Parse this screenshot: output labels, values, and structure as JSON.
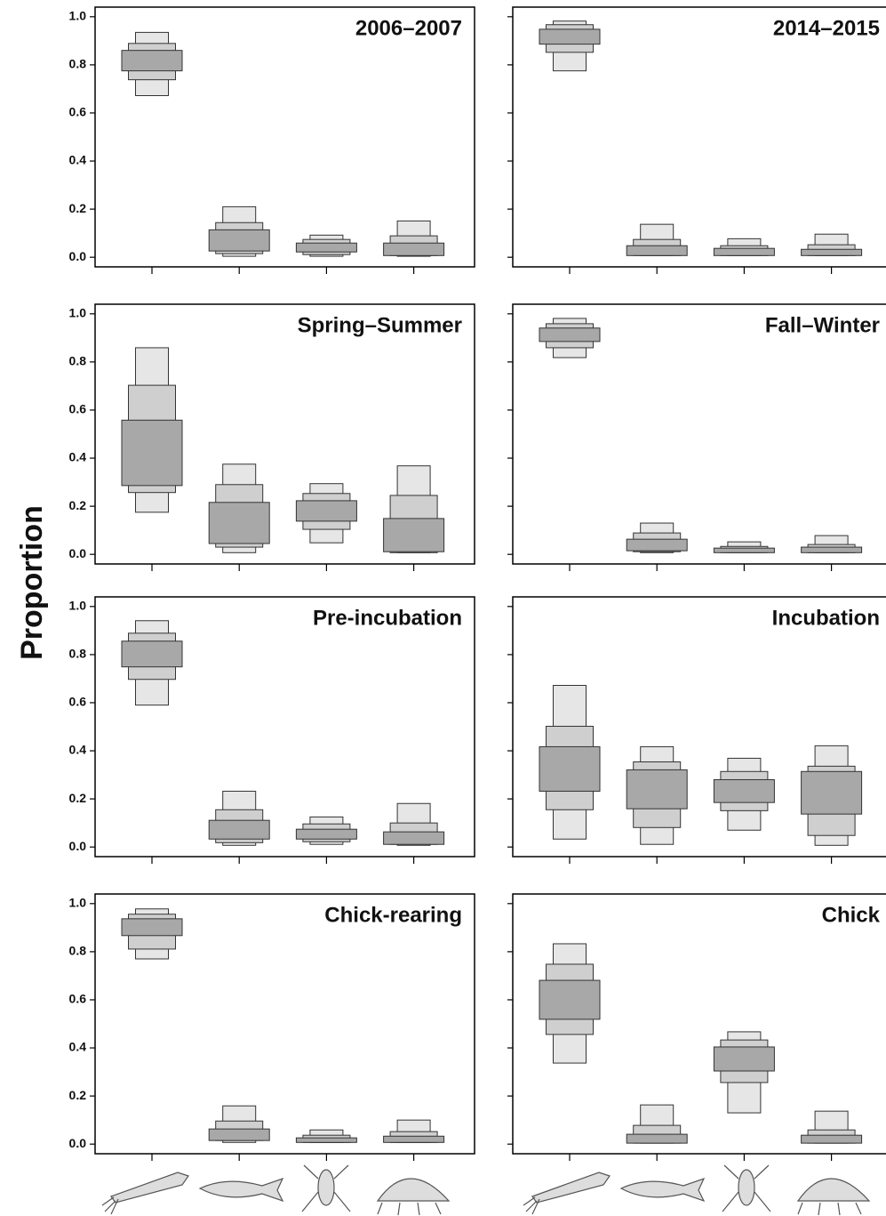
{
  "ylabel": "Proportion",
  "chart_data": [
    {
      "type": "interval",
      "title": "2006–2007",
      "categories": [
        null,
        null,
        null,
        null
      ],
      "ylim": [
        -0.04,
        1.04
      ],
      "yticks": [
        {
          "value": 0,
          "label": "0.0"
        },
        0.2,
        0.4,
        0.6,
        0.8,
        {
          "value": 1,
          "label": "1.0"
        }
      ],
      "ytick_labels": true,
      "colors": {
        "outer": "#e6e6e6",
        "middle": "#cfcfcf",
        "inner": "#a8a8a8"
      },
      "outer": [
        [
          0.672,
          0.935
        ],
        [
          0.004,
          0.21
        ],
        [
          0.004,
          0.092
        ],
        [
          0.004,
          0.151
        ]
      ],
      "middle": [
        [
          0.738,
          0.889
        ],
        [
          0.015,
          0.144
        ],
        [
          0.011,
          0.074
        ],
        [
          0.007,
          0.089
        ]
      ],
      "inner": [
        [
          0.775,
          0.86
        ],
        [
          0.026,
          0.114
        ],
        [
          0.022,
          0.059
        ],
        [
          0.007,
          0.059
        ]
      ]
    },
    {
      "type": "interval",
      "title": "2014–2015",
      "categories": [
        null,
        null,
        null,
        null
      ],
      "ylim": [
        -0.04,
        1.04
      ],
      "yticks": [
        0,
        0.2,
        0.4,
        0.6,
        0.8,
        1
      ],
      "ytick_labels": false,
      "colors": {
        "outer": "#e6e6e6",
        "middle": "#cfcfcf",
        "inner": "#a8a8a8"
      },
      "outer": [
        [
          0.775,
          0.982
        ],
        [
          0.007,
          0.137
        ],
        [
          0.007,
          0.077
        ],
        [
          0.007,
          0.096
        ]
      ],
      "middle": [
        [
          0.852,
          0.967
        ],
        [
          0.007,
          0.074
        ],
        [
          0.007,
          0.048
        ],
        [
          0.007,
          0.052
        ]
      ],
      "inner": [
        [
          0.886,
          0.948
        ],
        [
          0.007,
          0.048
        ],
        [
          0.007,
          0.037
        ],
        [
          0.007,
          0.033
        ]
      ]
    },
    {
      "type": "interval",
      "title": "Spring–Summer",
      "categories": [
        null,
        null,
        null,
        null
      ],
      "ylim": [
        -0.04,
        1.04
      ],
      "yticks": [
        {
          "value": 0,
          "label": "0.0"
        },
        0.2,
        0.4,
        0.6,
        0.8,
        {
          "value": 1,
          "label": "1.0"
        }
      ],
      "ytick_labels": true,
      "colors": {
        "outer": "#e6e6e6",
        "middle": "#cfcfcf",
        "inner": "#a8a8a8"
      },
      "outer": [
        [
          0.175,
          0.859
        ],
        [
          0.007,
          0.375
        ],
        [
          0.048,
          0.294
        ],
        [
          0.007,
          0.368
        ]
      ],
      "middle": [
        [
          0.257,
          0.703
        ],
        [
          0.03,
          0.29
        ],
        [
          0.104,
          0.253
        ],
        [
          0.007,
          0.245
        ]
      ],
      "inner": [
        [
          0.286,
          0.558
        ],
        [
          0.045,
          0.216
        ],
        [
          0.138,
          0.223
        ],
        [
          0.011,
          0.149
        ]
      ]
    },
    {
      "type": "interval",
      "title": "Fall–Winter",
      "categories": [
        null,
        null,
        null,
        null
      ],
      "ylim": [
        -0.04,
        1.04
      ],
      "yticks": [
        0,
        0.2,
        0.4,
        0.6,
        0.8,
        1
      ],
      "ytick_labels": false,
      "colors": {
        "outer": "#e6e6e6",
        "middle": "#cfcfcf",
        "inner": "#a8a8a8"
      },
      "outer": [
        [
          0.818,
          0.981
        ],
        [
          0.007,
          0.13
        ],
        [
          0.007,
          0.052
        ],
        [
          0.007,
          0.078
        ]
      ],
      "middle": [
        [
          0.859,
          0.959
        ],
        [
          0.011,
          0.089
        ],
        [
          0.007,
          0.033
        ],
        [
          0.007,
          0.041
        ]
      ],
      "inner": [
        [
          0.885,
          0.941
        ],
        [
          0.015,
          0.063
        ],
        [
          0.007,
          0.026
        ],
        [
          0.007,
          0.03
        ]
      ]
    },
    {
      "type": "interval",
      "title": "Pre-incubation",
      "categories": [
        null,
        null,
        null,
        null
      ],
      "ylim": [
        -0.04,
        1.04
      ],
      "yticks": [
        {
          "value": 0,
          "label": "0.0"
        },
        0.2,
        0.4,
        0.6,
        0.8,
        {
          "value": 1,
          "label": "1.0"
        }
      ],
      "ytick_labels": true,
      "colors": {
        "outer": "#e6e6e6",
        "middle": "#cfcfcf",
        "inner": "#a8a8a8"
      },
      "outer": [
        [
          0.59,
          0.941
        ],
        [
          0.007,
          0.232
        ],
        [
          0.011,
          0.125
        ],
        [
          0.007,
          0.181
        ]
      ],
      "middle": [
        [
          0.697,
          0.889
        ],
        [
          0.018,
          0.155
        ],
        [
          0.022,
          0.096
        ],
        [
          0.011,
          0.1
        ]
      ],
      "inner": [
        [
          0.749,
          0.856
        ],
        [
          0.033,
          0.111
        ],
        [
          0.033,
          0.074
        ],
        [
          0.011,
          0.063
        ]
      ]
    },
    {
      "type": "interval",
      "title": "Incubation",
      "categories": [
        null,
        null,
        null,
        null
      ],
      "ylim": [
        -0.04,
        1.04
      ],
      "yticks": [
        0,
        0.2,
        0.4,
        0.6,
        0.8,
        1
      ],
      "ytick_labels": false,
      "colors": {
        "outer": "#e6e6e6",
        "middle": "#cfcfcf",
        "inner": "#a8a8a8"
      },
      "outer": [
        [
          0.033,
          0.672
        ],
        [
          0.011,
          0.417
        ],
        [
          0.07,
          0.369
        ],
        [
          0.007,
          0.421
        ]
      ],
      "middle": [
        [
          0.155,
          0.502
        ],
        [
          0.081,
          0.354
        ],
        [
          0.151,
          0.314
        ],
        [
          0.048,
          0.336
        ]
      ],
      "inner": [
        [
          0.232,
          0.417
        ],
        [
          0.159,
          0.321
        ],
        [
          0.185,
          0.28
        ],
        [
          0.137,
          0.314
        ]
      ]
    },
    {
      "type": "interval",
      "title": "Chick-rearing",
      "categories": [
        null,
        null,
        null,
        null
      ],
      "ylim": [
        -0.04,
        1.04
      ],
      "yticks": [
        {
          "value": 0,
          "label": "0.0"
        },
        0.2,
        0.4,
        0.6,
        0.8,
        {
          "value": 1,
          "label": "1.0"
        }
      ],
      "ytick_labels": true,
      "colors": {
        "outer": "#e6e6e6",
        "middle": "#cfcfcf",
        "inner": "#a8a8a8"
      },
      "outer": [
        [
          0.77,
          0.978
        ],
        [
          0.007,
          0.159
        ],
        [
          0.007,
          0.059
        ],
        [
          0.007,
          0.1
        ]
      ],
      "middle": [
        [
          0.811,
          0.956
        ],
        [
          0.015,
          0.096
        ],
        [
          0.007,
          0.037
        ],
        [
          0.007,
          0.052
        ]
      ],
      "inner": [
        [
          0.867,
          0.937
        ],
        [
          0.015,
          0.063
        ],
        [
          0.007,
          0.026
        ],
        [
          0.007,
          0.033
        ]
      ]
    },
    {
      "type": "interval",
      "title": "Chick",
      "categories": [
        null,
        null,
        null,
        null
      ],
      "ylim": [
        -0.04,
        1.04
      ],
      "yticks": [
        0,
        0.2,
        0.4,
        0.6,
        0.8,
        1
      ],
      "ytick_labels": false,
      "colors": {
        "outer": "#e6e6e6",
        "middle": "#cfcfcf",
        "inner": "#a8a8a8"
      },
      "outer": [
        [
          0.337,
          0.833
        ],
        [
          0.004,
          0.163
        ],
        [
          0.13,
          0.467
        ],
        [
          0.004,
          0.137
        ]
      ],
      "middle": [
        [
          0.456,
          0.748
        ],
        [
          0.004,
          0.078
        ],
        [
          0.256,
          0.433
        ],
        [
          0.004,
          0.059
        ]
      ],
      "inner": [
        [
          0.519,
          0.681
        ],
        [
          0.004,
          0.041
        ],
        [
          0.304,
          0.404
        ],
        [
          0.004,
          0.037
        ]
      ]
    }
  ]
}
